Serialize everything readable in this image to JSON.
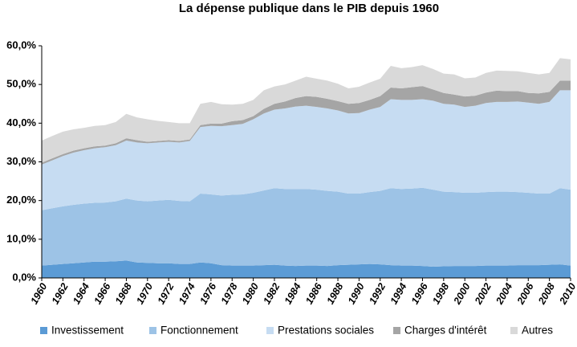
{
  "chart_data": {
    "type": "stacked-area",
    "title": "La dépense publique dans le PIB depuis 1960",
    "x": [
      1960,
      1961,
      1962,
      1963,
      1964,
      1965,
      1966,
      1967,
      1968,
      1969,
      1970,
      1971,
      1972,
      1973,
      1974,
      1975,
      1976,
      1977,
      1978,
      1979,
      1980,
      1981,
      1982,
      1983,
      1984,
      1985,
      1986,
      1987,
      1988,
      1989,
      1990,
      1991,
      1992,
      1993,
      1994,
      1995,
      1996,
      1997,
      1998,
      1999,
      2000,
      2001,
      2002,
      2003,
      2004,
      2005,
      2006,
      2007,
      2008,
      2009,
      2010
    ],
    "xlim": [
      1960,
      2010
    ],
    "xticks": [
      1960,
      1962,
      1964,
      1966,
      1968,
      1970,
      1972,
      1974,
      1976,
      1978,
      1980,
      1982,
      1984,
      1986,
      1988,
      1990,
      1992,
      1994,
      1996,
      1998,
      2000,
      2002,
      2004,
      2006,
      2008,
      2010
    ],
    "ylim": [
      0,
      60
    ],
    "yticks": [
      {
        "value": 0,
        "label": "0,0%"
      },
      {
        "value": 10,
        "label": "10,0%"
      },
      {
        "value": 20,
        "label": "20,0%"
      },
      {
        "value": 30,
        "label": "30,0%"
      },
      {
        "value": 40,
        "label": "40,0%"
      },
      {
        "value": 50,
        "label": "50,0%"
      },
      {
        "value": 60,
        "label": "60,0%"
      }
    ],
    "grid": false,
    "legend": "bottom",
    "series": [
      {
        "name": "Investissement",
        "color": "#5b9bd5",
        "values": [
          3.2,
          3.4,
          3.6,
          3.8,
          4.0,
          4.2,
          4.2,
          4.3,
          4.5,
          4.0,
          3.9,
          3.8,
          3.8,
          3.6,
          3.6,
          4.0,
          3.8,
          3.3,
          3.2,
          3.2,
          3.2,
          3.3,
          3.4,
          3.2,
          3.1,
          3.2,
          3.2,
          3.1,
          3.3,
          3.4,
          3.5,
          3.6,
          3.5,
          3.3,
          3.2,
          3.2,
          3.1,
          2.9,
          3.0,
          3.1,
          3.1,
          3.1,
          3.2,
          3.2,
          3.2,
          3.3,
          3.3,
          3.3,
          3.4,
          3.5,
          3.2
        ]
      },
      {
        "name": "Fonctionnement",
        "color": "#9dc3e6",
        "values": [
          14.3,
          14.6,
          14.9,
          15.1,
          15.2,
          15.2,
          15.3,
          15.5,
          16.0,
          16.0,
          15.9,
          16.2,
          16.4,
          16.3,
          16.2,
          17.8,
          17.8,
          18.0,
          18.3,
          18.4,
          18.8,
          19.3,
          19.8,
          19.8,
          19.9,
          19.8,
          19.6,
          19.4,
          19.0,
          18.4,
          18.3,
          18.6,
          19.0,
          19.9,
          19.8,
          19.9,
          20.2,
          19.9,
          19.3,
          19.1,
          18.9,
          18.9,
          19.0,
          19.1,
          19.1,
          18.9,
          18.7,
          18.5,
          18.4,
          19.7,
          19.6
        ]
      },
      {
        "name": "Prestations sociales",
        "color": "#c6dcf2",
        "values": [
          11.8,
          12.4,
          13.0,
          13.5,
          13.8,
          14.1,
          14.3,
          14.5,
          15.0,
          15.0,
          15.0,
          15.0,
          15.0,
          15.1,
          15.6,
          17.2,
          17.7,
          17.9,
          18.0,
          18.2,
          19.0,
          19.9,
          20.3,
          20.8,
          21.3,
          21.5,
          21.4,
          21.3,
          21.0,
          20.7,
          20.8,
          21.3,
          21.7,
          23.0,
          23.0,
          22.9,
          22.9,
          23.0,
          22.7,
          22.6,
          22.2,
          22.5,
          23.0,
          23.2,
          23.2,
          23.4,
          23.3,
          23.2,
          23.7,
          25.3,
          25.7
        ]
      },
      {
        "name": "Charges d'intérêt",
        "color": "#a5a5a5",
        "values": [
          0.5,
          0.5,
          0.5,
          0.5,
          0.5,
          0.5,
          0.4,
          0.5,
          0.6,
          0.6,
          0.4,
          0.4,
          0.4,
          0.4,
          0.4,
          0.5,
          0.6,
          0.7,
          1.0,
          1.0,
          0.8,
          1.2,
          1.5,
          1.8,
          2.2,
          2.5,
          2.6,
          2.5,
          2.4,
          2.5,
          2.6,
          2.5,
          2.8,
          3.0,
          3.0,
          3.3,
          3.4,
          2.9,
          2.8,
          2.6,
          2.7,
          2.6,
          2.7,
          2.9,
          2.8,
          2.7,
          2.5,
          2.7,
          2.6,
          2.5,
          2.5
        ]
      },
      {
        "name": "Autres",
        "color": "#d9d9d9",
        "values": [
          5.7,
          5.8,
          5.8,
          5.5,
          5.3,
          5.3,
          5.3,
          5.5,
          6.3,
          5.9,
          5.8,
          5.2,
          4.7,
          4.6,
          4.2,
          5.5,
          5.6,
          5.0,
          4.3,
          4.2,
          4.2,
          4.8,
          4.5,
          4.4,
          4.5,
          5.0,
          4.7,
          4.7,
          4.5,
          4.0,
          4.2,
          4.5,
          4.5,
          5.6,
          5.2,
          5.2,
          5.4,
          5.3,
          5.0,
          5.2,
          4.7,
          4.7,
          5.1,
          5.2,
          5.2,
          5.1,
          5.2,
          4.9,
          4.9,
          5.8,
          5.5
        ]
      }
    ]
  }
}
